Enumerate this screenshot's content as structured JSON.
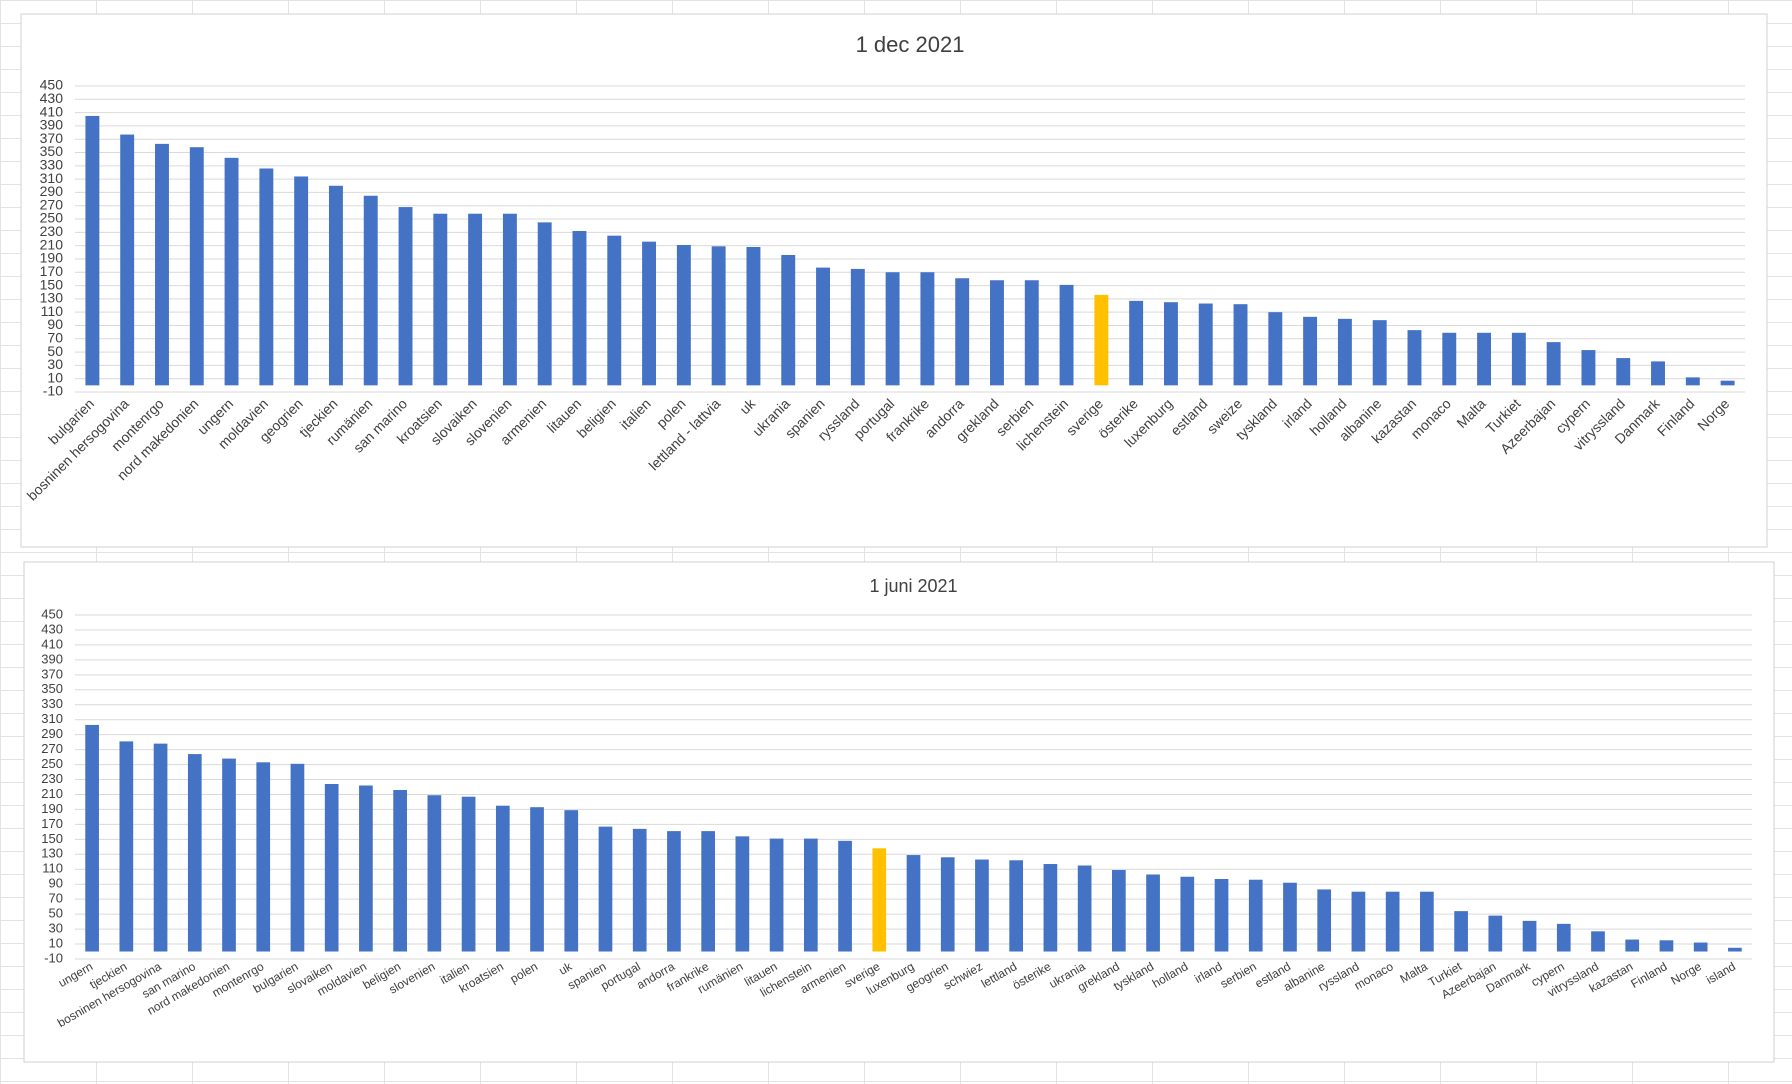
{
  "chart_data": [
    {
      "type": "bar",
      "title": "1 dec 2021",
      "categories": [
        "bulgarien",
        "bosninen hersogovina",
        "montenrgo",
        "nord makedonien",
        "ungern",
        "moldavien",
        "geogrien",
        "tjeckien",
        "rumänien",
        "san marino",
        "kroatsien",
        "slovaiken",
        "slovenien",
        "armenien",
        "litauen",
        "beligien",
        "italien",
        "polen",
        "lettland - lattvia",
        "uk",
        "ukrania",
        "spanien",
        "ryssland",
        "portugal",
        "frankrike",
        "andorra",
        "grekland",
        "serbien",
        "lichenstein",
        "sverige",
        "österike",
        "luxenburg",
        "estland",
        "sweize",
        "tyskland",
        "irland",
        "holland",
        "albanine",
        "kazastan",
        "monaco",
        "Malta",
        "Turkiet",
        "Azeerbajan",
        "cypern",
        "vitryssland",
        "Danmark",
        "Finland",
        "Norge"
      ],
      "values": [
        405,
        377,
        363,
        358,
        342,
        326,
        314,
        300,
        285,
        268,
        258,
        258,
        258,
        245,
        232,
        225,
        216,
        211,
        209,
        208,
        196,
        177,
        175,
        170,
        170,
        161,
        158,
        158,
        151,
        136,
        127,
        125,
        123,
        122,
        110,
        103,
        100,
        98,
        83,
        79,
        79,
        79,
        65,
        53,
        41,
        36,
        12,
        7
      ],
      "colors": [
        "#4472c4",
        "#4472c4",
        "#4472c4",
        "#4472c4",
        "#4472c4",
        "#4472c4",
        "#4472c4",
        "#4472c4",
        "#4472c4",
        "#4472c4",
        "#4472c4",
        "#4472c4",
        "#4472c4",
        "#4472c4",
        "#4472c4",
        "#4472c4",
        "#4472c4",
        "#4472c4",
        "#4472c4",
        "#4472c4",
        "#4472c4",
        "#4472c4",
        "#4472c4",
        "#4472c4",
        "#4472c4",
        "#4472c4",
        "#4472c4",
        "#4472c4",
        "#4472c4",
        "#ffc000",
        "#4472c4",
        "#4472c4",
        "#4472c4",
        "#4472c4",
        "#4472c4",
        "#4472c4",
        "#4472c4",
        "#4472c4",
        "#4472c4",
        "#4472c4",
        "#4472c4",
        "#4472c4",
        "#4472c4",
        "#4472c4",
        "#4472c4",
        "#4472c4",
        "#4472c4",
        "#4472c4"
      ],
      "ylim": [
        -10,
        450
      ],
      "yticks": [
        -10,
        10,
        30,
        50,
        70,
        90,
        110,
        130,
        150,
        170,
        190,
        210,
        230,
        250,
        270,
        290,
        310,
        330,
        350,
        370,
        390,
        410,
        430,
        450
      ],
      "grid": true
    },
    {
      "type": "bar",
      "title": "1 juni 2021",
      "categories": [
        "ungern",
        "tjeckien",
        "bosninen hersogovina",
        "san marino",
        "nord makedonien",
        "montenrgo",
        "bulgarien",
        "slovaiken",
        "moldavien",
        "beligien",
        "slovenien",
        "italien",
        "kroatsien",
        "polen",
        "uk",
        "spanien",
        "portugal",
        "andorra",
        "frankrike",
        "rumänien",
        "litauen",
        "lichenstein",
        "armenien",
        "sverige",
        "luxenburg",
        "geogrien",
        "schwiez",
        "lettland",
        "österike",
        "ukrania",
        "grekland",
        "tyskland",
        "holland",
        "irland",
        "serbien",
        "estland",
        "albanine",
        "ryssland",
        "monaco",
        "Malta",
        "Turkiet",
        "Azeerbajan",
        "Danmark",
        "cypern",
        "vitryssland",
        "kazastan",
        "Finland",
        "Norge",
        "island"
      ],
      "values": [
        303,
        281,
        278,
        264,
        258,
        253,
        251,
        224,
        222,
        216,
        209,
        207,
        195,
        193,
        189,
        167,
        164,
        161,
        161,
        154,
        151,
        151,
        148,
        138,
        129,
        126,
        123,
        122,
        117,
        115,
        109,
        103,
        100,
        97,
        96,
        92,
        83,
        80,
        80,
        80,
        54,
        48,
        41,
        37,
        27,
        16,
        15,
        12,
        5
      ],
      "colors": [
        "#4472c4",
        "#4472c4",
        "#4472c4",
        "#4472c4",
        "#4472c4",
        "#4472c4",
        "#4472c4",
        "#4472c4",
        "#4472c4",
        "#4472c4",
        "#4472c4",
        "#4472c4",
        "#4472c4",
        "#4472c4",
        "#4472c4",
        "#4472c4",
        "#4472c4",
        "#4472c4",
        "#4472c4",
        "#4472c4",
        "#4472c4",
        "#4472c4",
        "#4472c4",
        "#ffc000",
        "#4472c4",
        "#4472c4",
        "#4472c4",
        "#4472c4",
        "#4472c4",
        "#4472c4",
        "#4472c4",
        "#4472c4",
        "#4472c4",
        "#4472c4",
        "#4472c4",
        "#4472c4",
        "#4472c4",
        "#4472c4",
        "#4472c4",
        "#4472c4",
        "#4472c4",
        "#4472c4",
        "#4472c4",
        "#4472c4",
        "#4472c4",
        "#4472c4",
        "#4472c4",
        "#4472c4",
        "#4472c4"
      ],
      "ylim": [
        -10,
        450
      ],
      "yticks": [
        -10,
        10,
        30,
        50,
        70,
        90,
        110,
        130,
        150,
        170,
        190,
        210,
        230,
        250,
        270,
        290,
        310,
        330,
        350,
        370,
        390,
        410,
        430,
        450
      ],
      "grid": true
    }
  ]
}
